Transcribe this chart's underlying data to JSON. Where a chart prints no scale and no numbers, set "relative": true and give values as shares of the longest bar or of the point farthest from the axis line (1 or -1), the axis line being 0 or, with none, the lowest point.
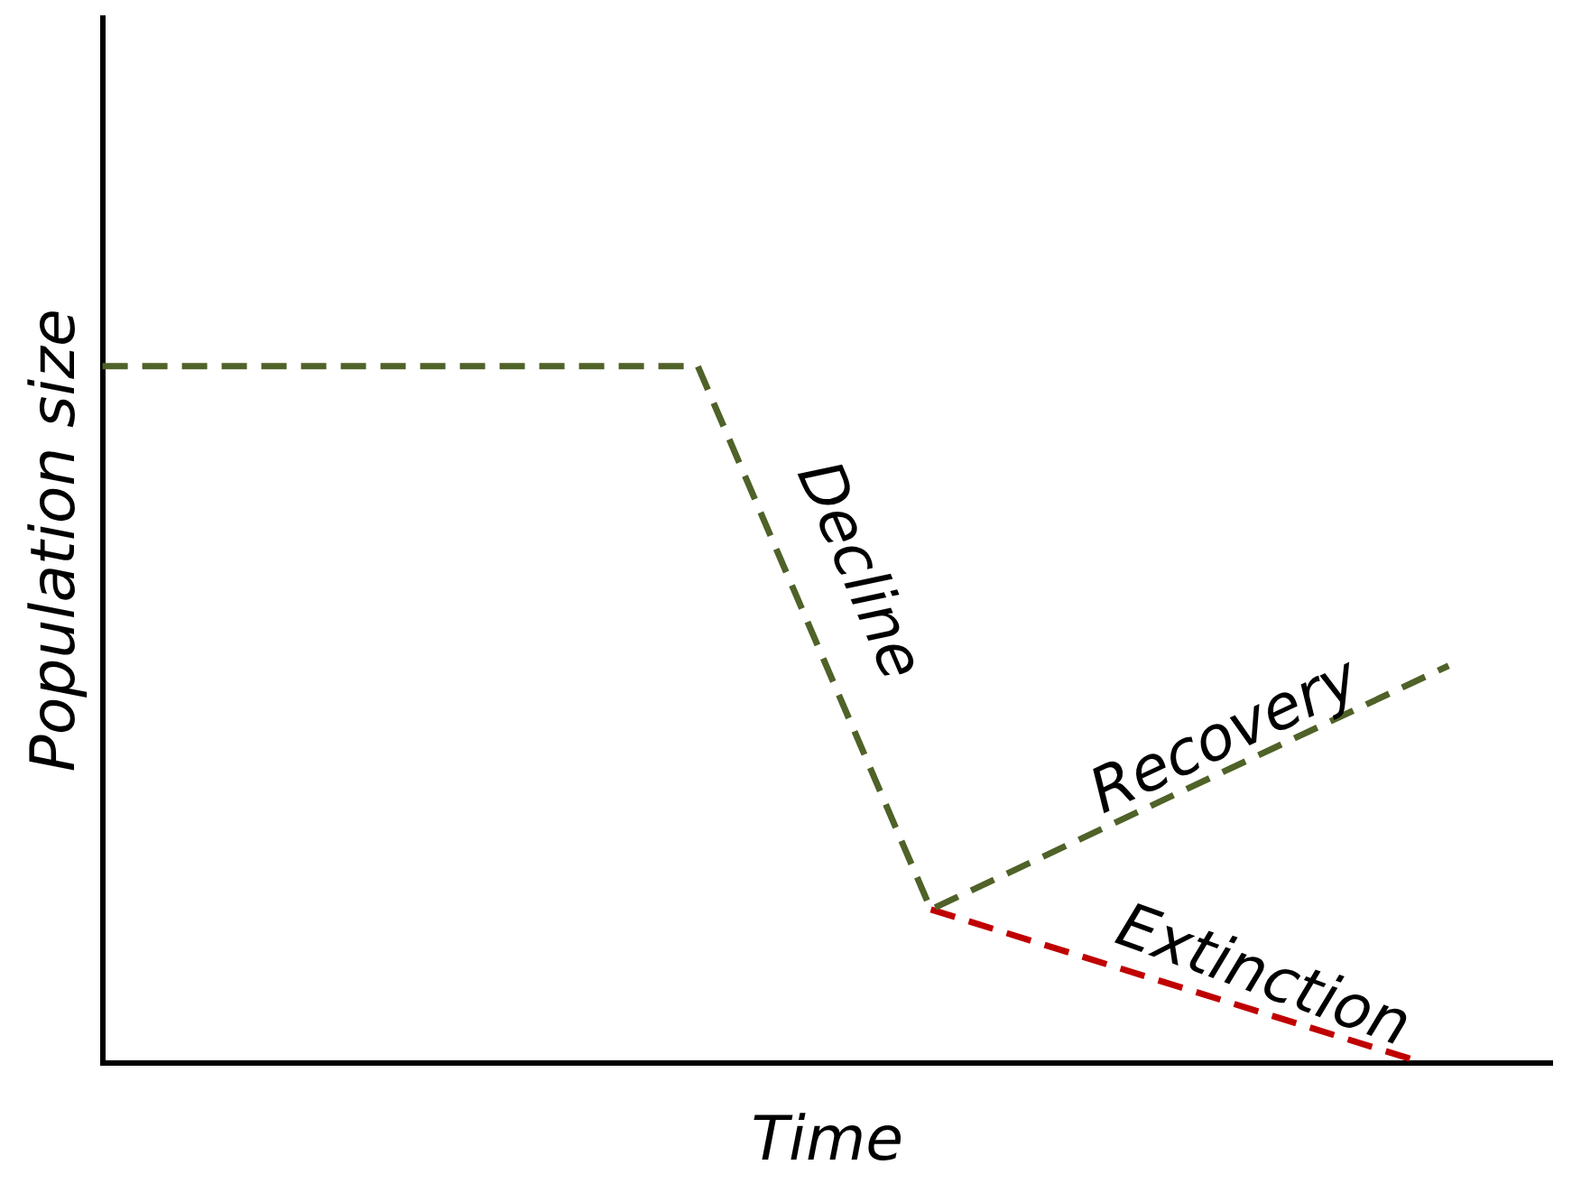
{
  "chart_data": {
    "type": "line",
    "relative": true,
    "xlabel": "Time",
    "ylabel": "Population size",
    "grid": false,
    "legend": false,
    "line_style": "dashed",
    "marker": "none",
    "categories": [
      null,
      null,
      null,
      null,
      null,
      null,
      null,
      null,
      null,
      null,
      null,
      null,
      null,
      null,
      null,
      null,
      null,
      null,
      null,
      null,
      null,
      null,
      null,
      null,
      null,
      null,
      null,
      null,
      null,
      null,
      null,
      null,
      null,
      null,
      null,
      null,
      null,
      null,
      null,
      null,
      null,
      null,
      null,
      null,
      null,
      null,
      null,
      null,
      null,
      null,
      null,
      null,
      null,
      null,
      null,
      null,
      null
    ],
    "series": [
      {
        "color": "#4f6228",
        "values": [
          1,
          null,
          null,
          null,
          null,
          null,
          null,
          null,
          null,
          null,
          null,
          null,
          null,
          null,
          null,
          null,
          null,
          null,
          null,
          null,
          null,
          null,
          null,
          1,
          null,
          null,
          null,
          null,
          null,
          null,
          null,
          null,
          0.22,
          null,
          null,
          null,
          null,
          null,
          null,
          null,
          null,
          null,
          null,
          null,
          null,
          null,
          null,
          null,
          null,
          null,
          null,
          null,
          0.57,
          null,
          null,
          null,
          null
        ]
      },
      {
        "color": "#c00000",
        "values": [
          null,
          null,
          null,
          null,
          null,
          null,
          null,
          null,
          null,
          null,
          null,
          null,
          null,
          null,
          null,
          null,
          null,
          null,
          null,
          null,
          null,
          null,
          null,
          null,
          null,
          null,
          null,
          null,
          null,
          null,
          null,
          null,
          0.22,
          null,
          null,
          null,
          null,
          null,
          null,
          null,
          null,
          null,
          null,
          null,
          null,
          null,
          null,
          null,
          null,
          null,
          null,
          0.0,
          null,
          null,
          null,
          null,
          null
        ]
      }
    ],
    "annotations": [
      "Decline",
      "Recovery",
      "Extinction"
    ]
  }
}
